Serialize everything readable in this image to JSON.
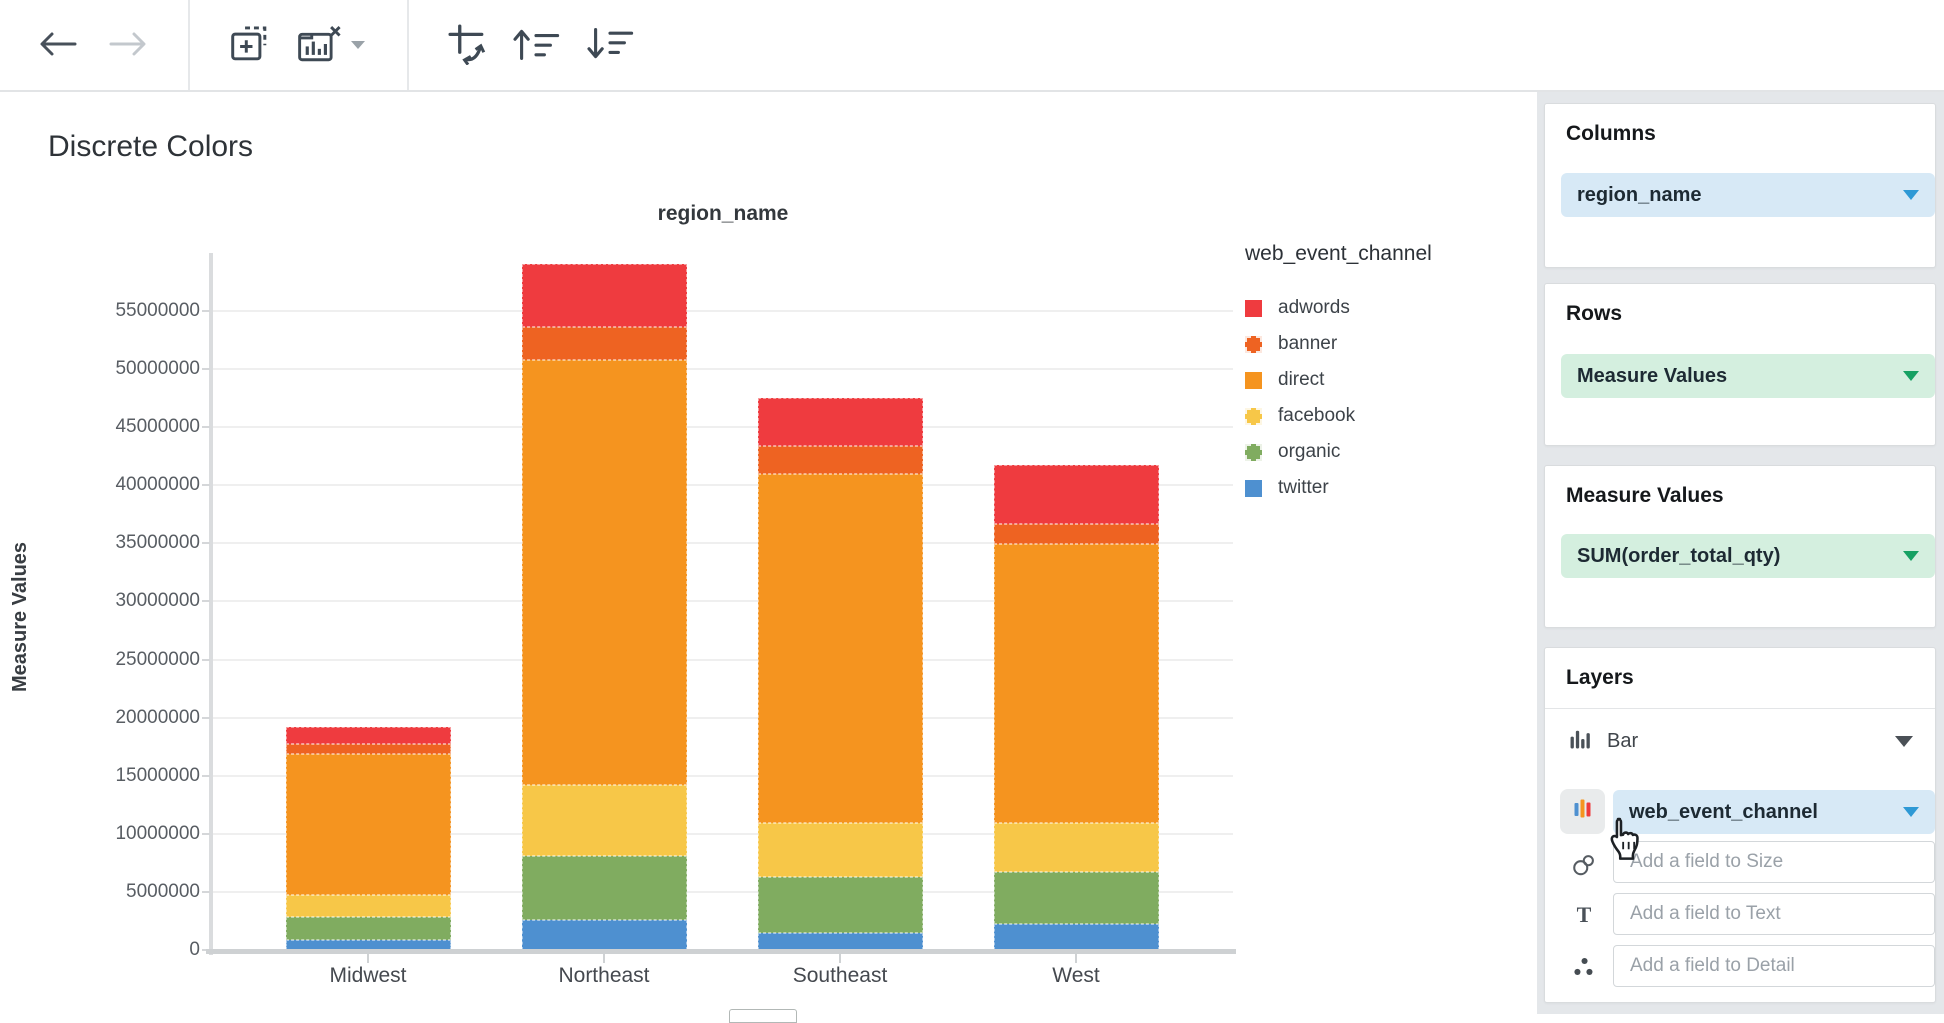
{
  "toolbar": {
    "icons": [
      "back-arrow",
      "forward-arrow",
      "add-chart",
      "clear-chart",
      "dropdown-caret",
      "swap-axes",
      "sort-ascending",
      "sort-descending"
    ]
  },
  "chart": {
    "title": "Discrete Colors",
    "x_axis_title": "region_name",
    "y_axis_title": "Measure Values"
  },
  "chart_data": {
    "type": "bar",
    "stacked": true,
    "title": "Discrete Colors",
    "xlabel": "region_name",
    "ylabel": "Measure Values",
    "categories": [
      "Midwest",
      "Northeast",
      "Southeast",
      "West"
    ],
    "series": [
      {
        "name": "adwords",
        "color": "#ef3b3f",
        "values": [
          1500000,
          5400000,
          4100000,
          5000000
        ]
      },
      {
        "name": "banner",
        "color": "#ee6322",
        "values": [
          800000,
          2800000,
          2400000,
          1800000
        ]
      },
      {
        "name": "direct",
        "color": "#f5941f",
        "values": [
          12200000,
          36600000,
          30100000,
          24000000
        ]
      },
      {
        "name": "facebook",
        "color": "#f7c748",
        "values": [
          1900000,
          6100000,
          4600000,
          4200000
        ]
      },
      {
        "name": "organic",
        "color": "#80ac60",
        "values": [
          1900000,
          5500000,
          4800000,
          4500000
        ]
      },
      {
        "name": "twitter",
        "color": "#4e90d0",
        "values": [
          900000,
          2600000,
          1500000,
          2200000
        ]
      }
    ],
    "totals": [
      19200000,
      59000000,
      47500000,
      41700000
    ],
    "y_ticks": [
      0,
      5000000,
      10000000,
      15000000,
      20000000,
      25000000,
      30000000,
      35000000,
      40000000,
      45000000,
      50000000,
      55000000
    ],
    "ylim": [
      0,
      60000000
    ],
    "grid": true,
    "legend_title": "web_event_channel",
    "legend_position": "right"
  },
  "legend": {
    "title": "web_event_channel",
    "items": [
      {
        "label": "adwords",
        "color": "#ef3b3f",
        "dashed_border": false
      },
      {
        "label": "banner",
        "color": "#ee6322",
        "dashed_border": true
      },
      {
        "label": "direct",
        "color": "#f5941f",
        "dashed_border": false
      },
      {
        "label": "facebook",
        "color": "#f7c748",
        "dashed_border": true
      },
      {
        "label": "organic",
        "color": "#80ac60",
        "dashed_border": true
      },
      {
        "label": "twitter",
        "color": "#4e90d0",
        "dashed_border": false
      }
    ]
  },
  "panel": {
    "columns": {
      "header": "Columns",
      "pill": "region_name"
    },
    "rows": {
      "header": "Rows",
      "pill": "Measure Values"
    },
    "measure_values": {
      "header": "Measure Values",
      "pill": "SUM(order_total_qty)"
    },
    "layers": {
      "header": "Layers",
      "layer_type": "Bar",
      "color_field": "web_event_channel",
      "size_placeholder": "Add a field to Size",
      "text_placeholder": "Add a field to Text",
      "detail_placeholder": "Add a field to Detail"
    }
  },
  "colors": {
    "accent_blue": "#2e99d5",
    "accent_green": "#16a163",
    "pill_blue_bg": "#d7e9f6",
    "pill_green_bg": "#d4efdf",
    "panel_bg": "#e4e7ea"
  }
}
